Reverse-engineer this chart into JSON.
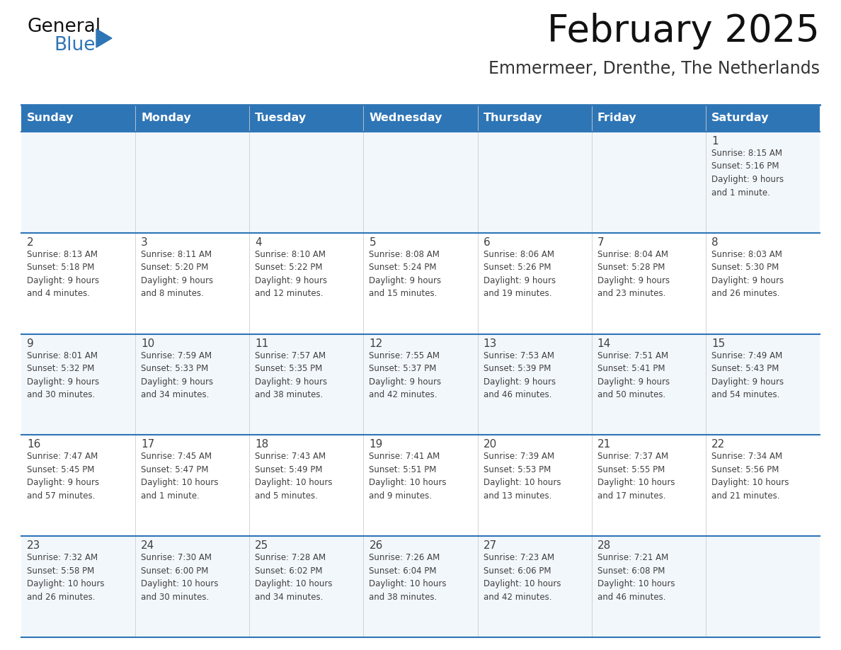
{
  "title": "February 2025",
  "subtitle": "Emmermeer, Drenthe, The Netherlands",
  "header_color": "#2e75b6",
  "header_text_color": "#ffffff",
  "day_names": [
    "Sunday",
    "Monday",
    "Tuesday",
    "Wednesday",
    "Thursday",
    "Friday",
    "Saturday"
  ],
  "row_bg_even": "#f2f7fc",
  "row_bg_odd": "#ffffff",
  "line_color": "#2e75b6",
  "text_color": "#404040",
  "day_num_color": "#404040",
  "cell_days": [
    [
      null,
      null,
      null,
      null,
      null,
      null,
      1
    ],
    [
      2,
      3,
      4,
      5,
      6,
      7,
      8
    ],
    [
      9,
      10,
      11,
      12,
      13,
      14,
      15
    ],
    [
      16,
      17,
      18,
      19,
      20,
      21,
      22
    ],
    [
      23,
      24,
      25,
      26,
      27,
      28,
      null
    ]
  ],
  "cell_data": [
    [
      null,
      null,
      null,
      null,
      null,
      null,
      "Sunrise: 8:15 AM\nSunset: 5:16 PM\nDaylight: 9 hours\nand 1 minute."
    ],
    [
      "Sunrise: 8:13 AM\nSunset: 5:18 PM\nDaylight: 9 hours\nand 4 minutes.",
      "Sunrise: 8:11 AM\nSunset: 5:20 PM\nDaylight: 9 hours\nand 8 minutes.",
      "Sunrise: 8:10 AM\nSunset: 5:22 PM\nDaylight: 9 hours\nand 12 minutes.",
      "Sunrise: 8:08 AM\nSunset: 5:24 PM\nDaylight: 9 hours\nand 15 minutes.",
      "Sunrise: 8:06 AM\nSunset: 5:26 PM\nDaylight: 9 hours\nand 19 minutes.",
      "Sunrise: 8:04 AM\nSunset: 5:28 PM\nDaylight: 9 hours\nand 23 minutes.",
      "Sunrise: 8:03 AM\nSunset: 5:30 PM\nDaylight: 9 hours\nand 26 minutes."
    ],
    [
      "Sunrise: 8:01 AM\nSunset: 5:32 PM\nDaylight: 9 hours\nand 30 minutes.",
      "Sunrise: 7:59 AM\nSunset: 5:33 PM\nDaylight: 9 hours\nand 34 minutes.",
      "Sunrise: 7:57 AM\nSunset: 5:35 PM\nDaylight: 9 hours\nand 38 minutes.",
      "Sunrise: 7:55 AM\nSunset: 5:37 PM\nDaylight: 9 hours\nand 42 minutes.",
      "Sunrise: 7:53 AM\nSunset: 5:39 PM\nDaylight: 9 hours\nand 46 minutes.",
      "Sunrise: 7:51 AM\nSunset: 5:41 PM\nDaylight: 9 hours\nand 50 minutes.",
      "Sunrise: 7:49 AM\nSunset: 5:43 PM\nDaylight: 9 hours\nand 54 minutes."
    ],
    [
      "Sunrise: 7:47 AM\nSunset: 5:45 PM\nDaylight: 9 hours\nand 57 minutes.",
      "Sunrise: 7:45 AM\nSunset: 5:47 PM\nDaylight: 10 hours\nand 1 minute.",
      "Sunrise: 7:43 AM\nSunset: 5:49 PM\nDaylight: 10 hours\nand 5 minutes.",
      "Sunrise: 7:41 AM\nSunset: 5:51 PM\nDaylight: 10 hours\nand 9 minutes.",
      "Sunrise: 7:39 AM\nSunset: 5:53 PM\nDaylight: 10 hours\nand 13 minutes.",
      "Sunrise: 7:37 AM\nSunset: 5:55 PM\nDaylight: 10 hours\nand 17 minutes.",
      "Sunrise: 7:34 AM\nSunset: 5:56 PM\nDaylight: 10 hours\nand 21 minutes."
    ],
    [
      "Sunrise: 7:32 AM\nSunset: 5:58 PM\nDaylight: 10 hours\nand 26 minutes.",
      "Sunrise: 7:30 AM\nSunset: 6:00 PM\nDaylight: 10 hours\nand 30 minutes.",
      "Sunrise: 7:28 AM\nSunset: 6:02 PM\nDaylight: 10 hours\nand 34 minutes.",
      "Sunrise: 7:26 AM\nSunset: 6:04 PM\nDaylight: 10 hours\nand 38 minutes.",
      "Sunrise: 7:23 AM\nSunset: 6:06 PM\nDaylight: 10 hours\nand 42 minutes.",
      "Sunrise: 7:21 AM\nSunset: 6:08 PM\nDaylight: 10 hours\nand 46 minutes.",
      null
    ]
  ],
  "figwidth": 11.88,
  "figheight": 9.18,
  "dpi": 100
}
